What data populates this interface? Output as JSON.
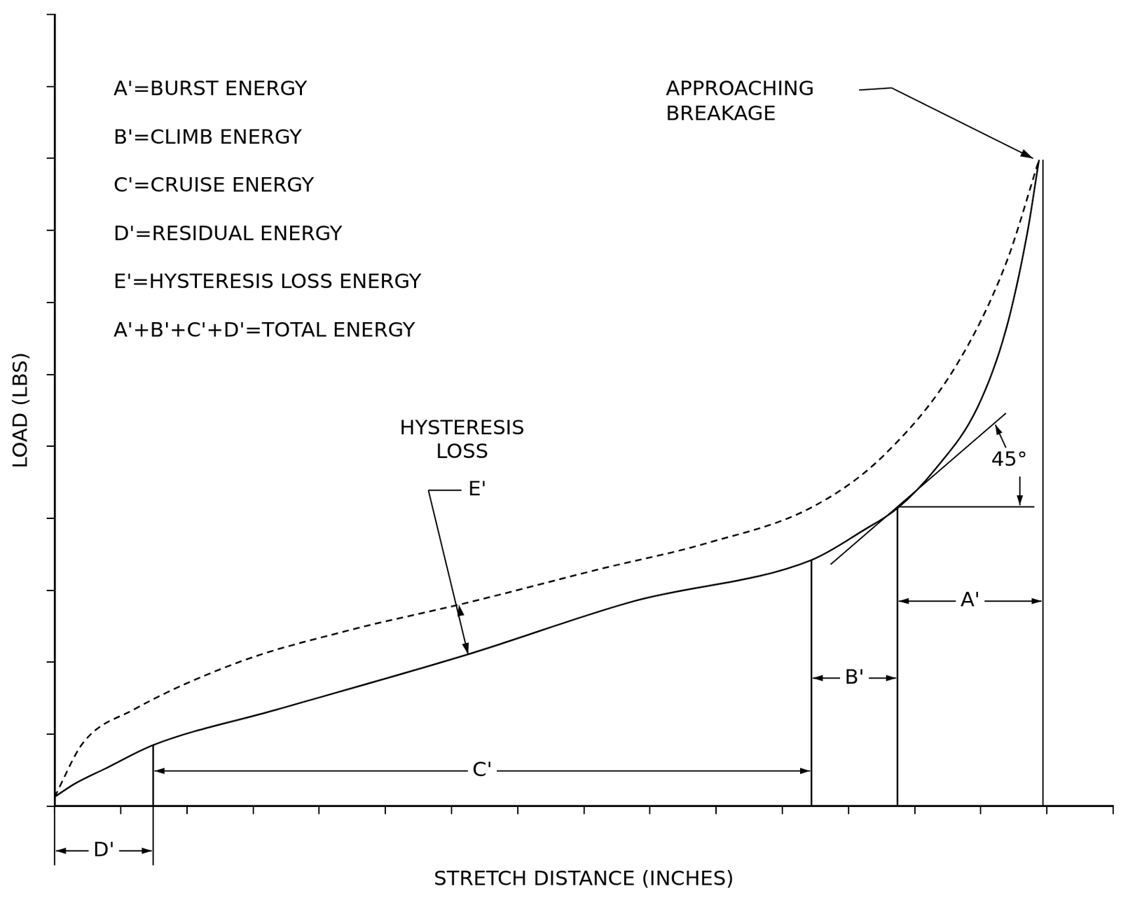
{
  "chart_data": {
    "type": "line",
    "x_label": "STRETCH DISTANCE (INCHES)",
    "y_label": "LOAD (LBS)",
    "xlim": [
      0,
      16
    ],
    "xticks": [
      0,
      1,
      2,
      3,
      4,
      5,
      6,
      7,
      8,
      9,
      10,
      11,
      12,
      13,
      14,
      15,
      16
    ],
    "ylim": [
      0,
      11
    ],
    "yticks": [
      0,
      1,
      2,
      3,
      4,
      5,
      6,
      7,
      8,
      9,
      10,
      11
    ],
    "grid": false,
    "tick_labels": false,
    "series": [
      {
        "color": "#000000",
        "line_style": "solid",
        "x": [
          0,
          0.32,
          0.76,
          1.49,
          3.35,
          6.25,
          8.76,
          11.44,
          12.22,
          12.74,
          13.3,
          13.95,
          14.38,
          14.7,
          14.88
        ],
        "values": [
          0.13,
          0.32,
          0.52,
          0.85,
          1.34,
          2.11,
          2.85,
          3.42,
          3.83,
          4.14,
          4.67,
          5.54,
          6.62,
          7.95,
          8.98
        ]
      },
      {
        "color": "#000000",
        "line_style": "dashed",
        "x": [
          0,
          0.43,
          1.19,
          2.81,
          4.43,
          6.25,
          8.22,
          9.84,
          11.46,
          12.54,
          13.62,
          14.38,
          14.88
        ],
        "values": [
          0.13,
          0.88,
          1.34,
          2.01,
          2.44,
          2.83,
          3.29,
          3.65,
          4.16,
          4.88,
          6.11,
          7.54,
          8.98
        ]
      }
    ],
    "notes": [
      "A'=BURST ENERGY",
      "B'=CLIMB ENERGY",
      "C'=CRUISE ENERGY",
      "D'=RESIDUAL ENERGY",
      "E'=HYSTERESIS LOSS ENERGY",
      "A'+B'+C'+D'=TOTAL ENERGY"
    ],
    "regions": [
      {
        "label": "A'",
        "start": 12.74,
        "end": 14.94
      },
      {
        "label": "B'",
        "start": 11.44,
        "end": 12.74
      },
      {
        "label": "C'",
        "start": 1.49,
        "end": 11.44
      },
      {
        "label": "D'",
        "start": 0,
        "end": 1.49
      }
    ],
    "tangent_line": {
      "x": [
        11.73,
        14.38
      ],
      "y": [
        3.36,
        5.46
      ]
    },
    "reference_line": {
      "x": [
        12.74,
        14.81
      ],
      "y": [
        4.16,
        4.16
      ]
    },
    "annotations": [
      {
        "text": [
          "HYSTERESIS",
          "LOSS"
        ]
      },
      {
        "text": "E'"
      },
      {
        "text": [
          "APPROACHING",
          "BREAKAGE"
        ]
      },
      {
        "text": "45°"
      }
    ]
  }
}
